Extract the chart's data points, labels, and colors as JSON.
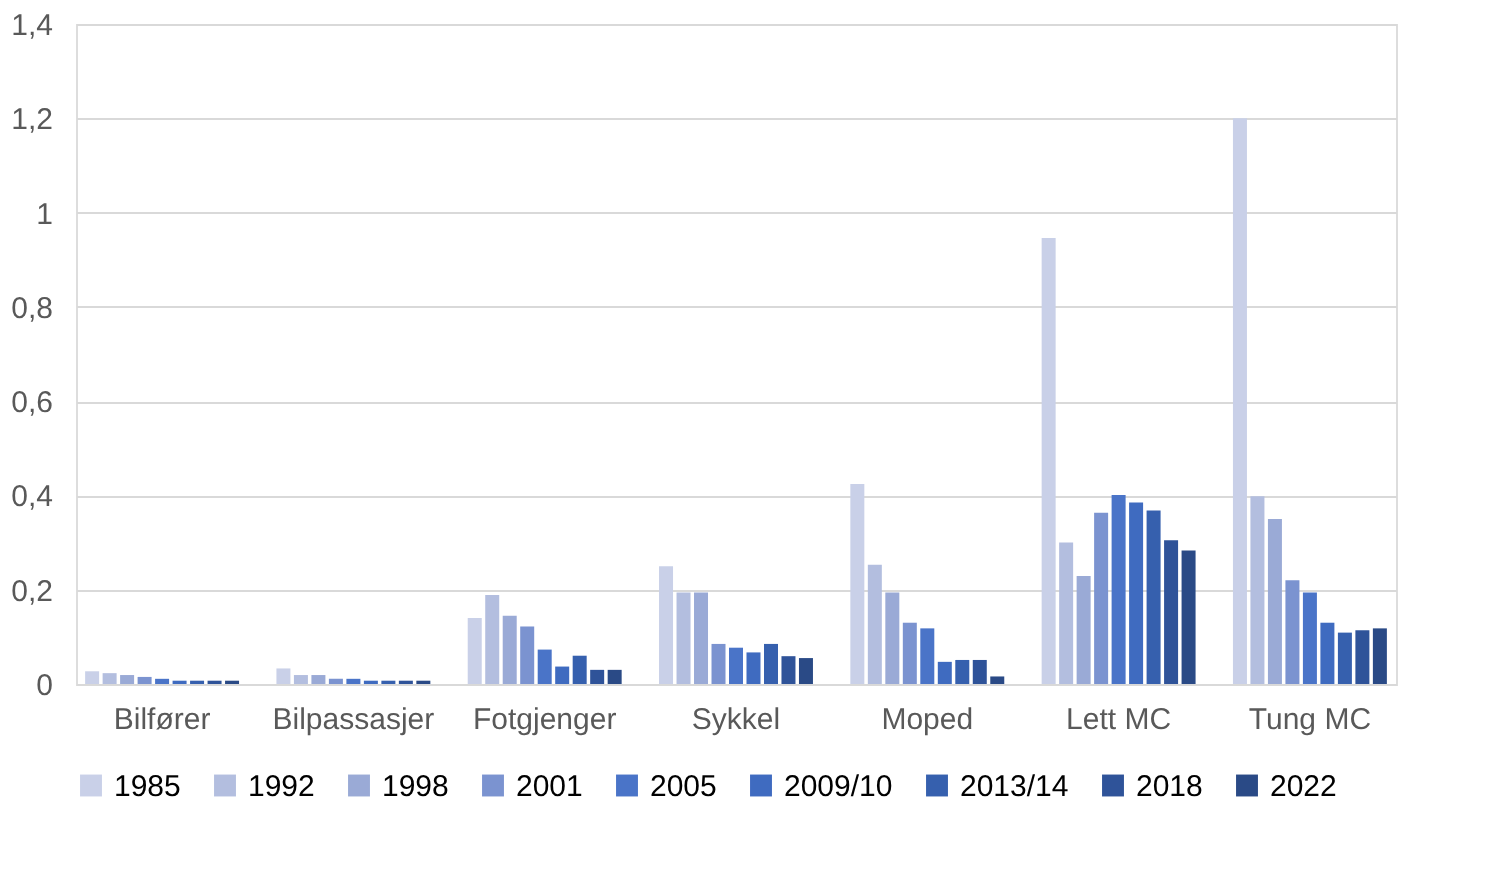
{
  "chart_data": {
    "type": "bar",
    "categories": [
      "Bilfører",
      "Bilpassasjer",
      "Fotgjenger",
      "Sykkel",
      "Moped",
      "Lett MC",
      "Tung MC"
    ],
    "series": [
      {
        "name": "1985",
        "color": "#c9d0e8",
        "values": [
          0.027,
          0.033,
          0.14,
          0.25,
          0.424,
          0.946,
          1.2
        ]
      },
      {
        "name": "1992",
        "color": "#b3bedf",
        "values": [
          0.023,
          0.019,
          0.189,
          0.194,
          0.253,
          0.3,
          0.398
        ]
      },
      {
        "name": "1998",
        "color": "#9aaad6",
        "values": [
          0.019,
          0.019,
          0.145,
          0.194,
          0.194,
          0.229,
          0.35
        ]
      },
      {
        "name": "2001",
        "color": "#7b93d0",
        "values": [
          0.015,
          0.011,
          0.122,
          0.085,
          0.13,
          0.363,
          0.22
        ]
      },
      {
        "name": "2005",
        "color": "#4a74c8",
        "values": [
          0.011,
          0.011,
          0.073,
          0.077,
          0.118,
          0.401,
          0.194
        ]
      },
      {
        "name": "2009/10",
        "color": "#3f6bc0",
        "values": [
          0.007,
          0.007,
          0.037,
          0.067,
          0.047,
          0.385,
          0.13
        ]
      },
      {
        "name": "2013/14",
        "color": "#3660ae",
        "values": [
          0.007,
          0.007,
          0.06,
          0.085,
          0.051,
          0.368,
          0.109
        ]
      },
      {
        "name": "2018",
        "color": "#2f5399",
        "values": [
          0.007,
          0.007,
          0.03,
          0.059,
          0.051,
          0.305,
          0.114
        ]
      },
      {
        "name": "2022",
        "color": "#2a4a86",
        "values": [
          0.007,
          0.007,
          0.03,
          0.055,
          0.016,
          0.283,
          0.118
        ]
      }
    ],
    "ylim": [
      0,
      1.4
    ],
    "yticks": [
      0,
      {
        "value": 0.2,
        "label": "0,2"
      },
      {
        "value": 0.4,
        "label": "0,4"
      },
      {
        "value": 0.6,
        "label": "0,6"
      },
      {
        "value": 0.8,
        "label": "0,8"
      },
      1,
      {
        "value": 1.2,
        "label": "1,2"
      },
      {
        "value": 1.4,
        "label": "1,4"
      }
    ],
    "grid": "y",
    "legend": "bottom"
  }
}
